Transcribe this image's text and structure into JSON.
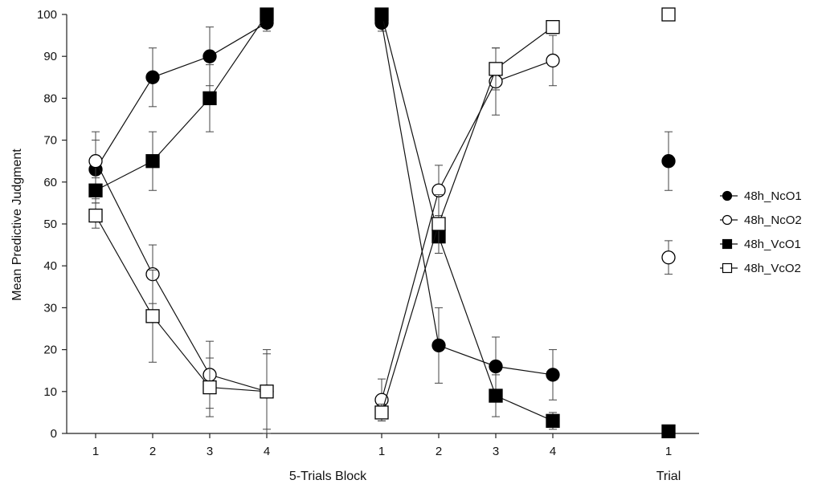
{
  "chart_data": {
    "type": "line",
    "ylabel": "Mean Predictive Judgment",
    "xlabel_blocks": "5-Trials Block",
    "xlabel_trial": "Trial",
    "ylim": [
      0,
      100
    ],
    "yticks": [
      0,
      10,
      20,
      30,
      40,
      50,
      60,
      70,
      80,
      90,
      100
    ],
    "phases": [
      {
        "categories": [
          "1",
          "2",
          "3",
          "4"
        ]
      },
      {
        "categories": [
          "1",
          "2",
          "3",
          "4"
        ]
      },
      {
        "categories": [
          "1"
        ]
      }
    ],
    "grid": false,
    "legend_position": "right",
    "series": [
      {
        "name": "48h_NcO1",
        "marker": "circle",
        "filled": true,
        "phases": [
          {
            "values": [
              63,
              85,
              90,
              98
            ],
            "errors": [
              7,
              7,
              7,
              2
            ]
          },
          {
            "values": [
              98,
              21,
              16,
              14
            ],
            "errors": [
              2,
              9,
              7,
              6
            ]
          },
          {
            "values": [
              65
            ],
            "errors": [
              7
            ]
          }
        ]
      },
      {
        "name": "48h_NcO2",
        "marker": "circle",
        "filled": false,
        "phases": [
          {
            "values": [
              65,
              38,
              14,
              10
            ],
            "errors": [
              7,
              7,
              8,
              10
            ]
          },
          {
            "values": [
              8,
              58,
              84,
              89
            ],
            "errors": [
              5,
              6,
              8,
              6
            ]
          },
          {
            "values": [
              42
            ],
            "errors": [
              4
            ]
          }
        ]
      },
      {
        "name": "48h_VcO1",
        "marker": "square",
        "filled": true,
        "phases": [
          {
            "values": [
              58,
              65,
              80,
              100
            ],
            "errors": [
              3,
              7,
              8,
              1
            ]
          },
          {
            "values": [
              100,
              47,
              9,
              3
            ],
            "errors": [
              1,
              4,
              5,
              2
            ]
          },
          {
            "values": [
              0.5
            ],
            "errors": [
              0.5
            ]
          }
        ]
      },
      {
        "name": "48h_VcO2",
        "marker": "square",
        "filled": false,
        "phases": [
          {
            "values": [
              52,
              28,
              11,
              10
            ],
            "errors": [
              3,
              11,
              7,
              9
            ]
          },
          {
            "values": [
              5,
              50,
              87,
              97
            ],
            "errors": [
              2,
              7,
              5,
              1
            ]
          },
          {
            "values": [
              100
            ],
            "errors": [
              0
            ]
          }
        ]
      }
    ]
  }
}
